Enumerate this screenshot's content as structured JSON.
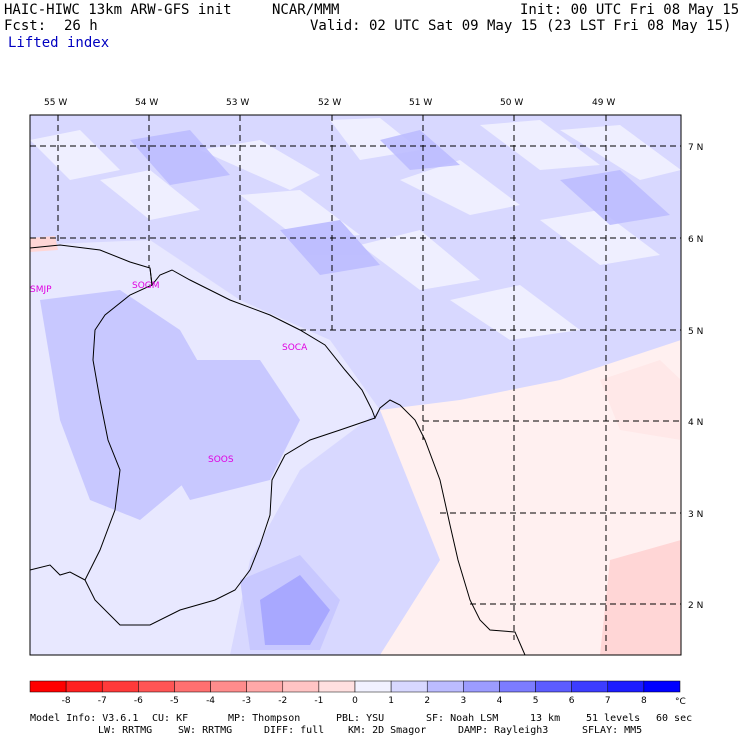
{
  "header": {
    "model": "HAIC-HIWC 13km ARW-GFS init",
    "org": "NCAR/MMM",
    "init": "Init: 00 UTC Fri 08 May 15",
    "fcst_label": "Fcst:",
    "fcst_value": "26 h",
    "valid": "Valid: 02 UTC Sat 09 May 15 (23 LST Fri 08 May 15)",
    "field": "Lifted index"
  },
  "map": {
    "lon_labels": [
      "55 W",
      "54 W",
      "53 W",
      "52 W",
      "51 W",
      "50 W",
      "49 W"
    ],
    "lat_labels": [
      "7 N",
      "6 N",
      "5 N",
      "4 N",
      "3 N",
      "2 N"
    ],
    "stations": [
      "SMJP",
      "SOGM",
      "SOCA",
      "SOOS"
    ]
  },
  "colorbar": {
    "ticks": [
      "-8",
      "-7",
      "-6",
      "-5",
      "-4",
      "-3",
      "-2",
      "-1",
      "0",
      "1",
      "2",
      "3",
      "4",
      "5",
      "6",
      "7",
      "8"
    ],
    "unit": "°C",
    "colors": [
      "#ff0000",
      "#ff2020",
      "#ff3a3a",
      "#ff5555",
      "#ff7070",
      "#ff8c8c",
      "#ffa8a8",
      "#ffc4c4",
      "#ffe0e0",
      "#f2f2ff",
      "#d8d8ff",
      "#bcbcff",
      "#9c9cff",
      "#7c7cff",
      "#5c5cff",
      "#3c3cff",
      "#1c1cff",
      "#0000ff"
    ]
  },
  "footer": {
    "line1": [
      "Model Info: V3.6.1",
      "CU: KF",
      "MP: Thompson",
      "PBL: YSU",
      "SF: Noah LSM",
      "13 km",
      "51 levels",
      "60 sec"
    ],
    "line2": [
      "LW: RRTMG",
      "SW: RRTMG",
      "DIFF: full",
      "KM: 2D Smagor",
      "DAMP: Rayleigh3",
      "SFLAY: MM5"
    ]
  }
}
